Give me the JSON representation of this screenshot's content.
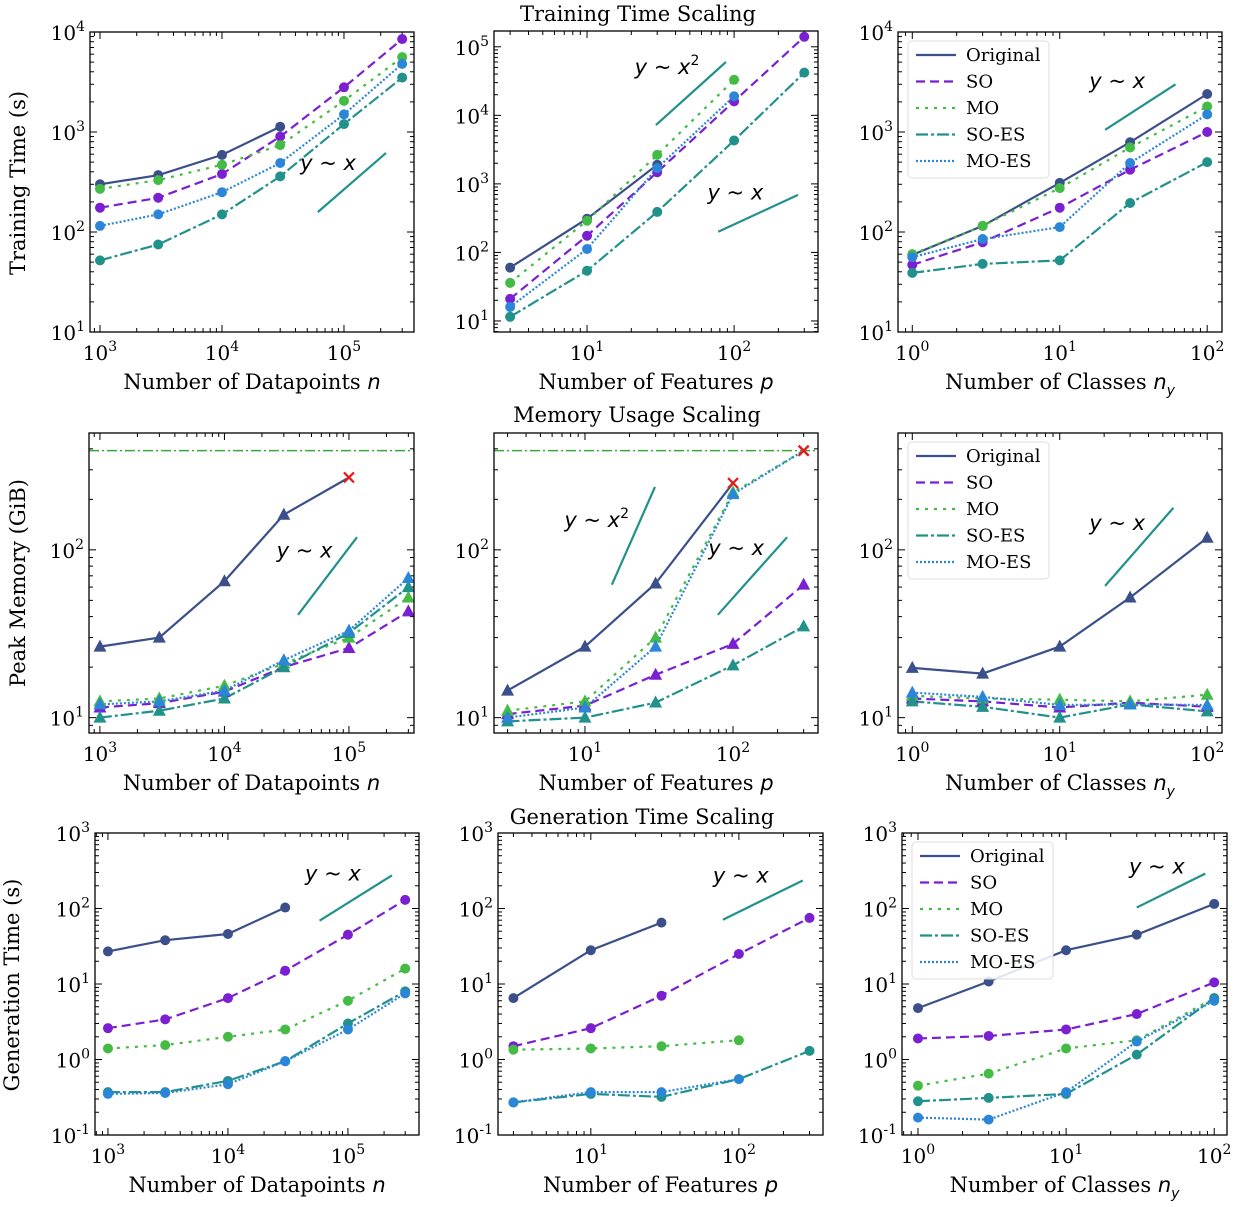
{
  "titles": [
    "Training Time Scaling",
    "Memory Usage Scaling",
    "Generation Time Scaling"
  ],
  "ylabels": [
    "Training Time (s)",
    "Peak Memory (GiB)",
    "Generation Time (s)"
  ],
  "xlabels": [
    {
      "text": "Number of Datapoints",
      "var": "n",
      "sub": ""
    },
    {
      "text": "Number of Features",
      "var": "p",
      "sub": ""
    },
    {
      "text": "Number of Classes",
      "var": "n",
      "sub": "y"
    }
  ],
  "legend": [
    "Original",
    "SO",
    "MO",
    "SO-ES",
    "MO-ES"
  ],
  "colors": {
    "Original": "#3b4f8a",
    "SO": "#7a1fd2",
    "MO": "#44bb44",
    "SO-ES": "#21918c",
    "MO-ES": "#2c86d8",
    "reference": "#21918c",
    "memory_limit": "#3aa83a",
    "oom_marker": "#e41a1c"
  },
  "chart_data": [
    {
      "type": "line",
      "title": "Training Time Scaling",
      "xscale": "log",
      "yscale": "log",
      "xlim": [
        828,
        375000
      ],
      "ylim": [
        10,
        10000
      ],
      "xticks": [
        1000,
        10000,
        100000
      ],
      "yticks": [
        10,
        100,
        1000,
        10000
      ],
      "marker": "circle",
      "legend": false,
      "x": [
        1000,
        3000,
        10000,
        30000,
        100000,
        300000
      ],
      "series": [
        {
          "name": "Original",
          "values": [
            300,
            370,
            590,
            1130,
            null,
            null
          ]
        },
        {
          "name": "SO",
          "values": [
            175,
            220,
            380,
            900,
            2800,
            8500
          ]
        },
        {
          "name": "MO",
          "values": [
            270,
            330,
            470,
            740,
            2050,
            5600
          ]
        },
        {
          "name": "SO-ES",
          "values": [
            52,
            75,
            150,
            360,
            1200,
            3500
          ]
        },
        {
          "name": "MO-ES",
          "values": [
            115,
            150,
            250,
            490,
            1500,
            4800
          ]
        }
      ],
      "annotations": [
        {
          "label": "y ~ x",
          "line": [
            [
              61000,
              158
            ],
            [
              221000,
              617
            ]
          ],
          "at": [
            74000,
            417
          ]
        }
      ]
    },
    {
      "type": "line",
      "xscale": "log",
      "yscale": "log",
      "xlim": [
        2.33,
        372
      ],
      "ylim": [
        6.9,
        170000
      ],
      "xticks": [
        10,
        100
      ],
      "yticks": [
        10,
        100,
        1000,
        10000,
        100000
      ],
      "marker": "circle",
      "legend": false,
      "x": [
        3,
        10,
        30,
        100,
        300
      ],
      "series": [
        {
          "name": "Original",
          "values": [
            60,
            310,
            1900,
            null,
            null
          ]
        },
        {
          "name": "SO",
          "values": [
            21,
            175,
            1480,
            16000,
            140000
          ]
        },
        {
          "name": "MO",
          "values": [
            36,
            290,
            2650,
            33000,
            null
          ]
        },
        {
          "name": "SO-ES",
          "values": [
            11.5,
            54,
            390,
            4300,
            42000
          ]
        },
        {
          "name": "MO-ES",
          "values": [
            16,
            112,
            1700,
            19000,
            null
          ]
        }
      ],
      "annotations": [
        {
          "label": "y ~ x",
          "sup": "2",
          "line": [
            [
              29.4,
              7200
            ],
            [
              88,
              60000
            ]
          ],
          "at": [
            35,
            40000
          ]
        },
        {
          "label": "y ~ x",
          "line": [
            [
              78,
              200
            ],
            [
              272,
              690
            ]
          ],
          "at": [
            102,
            590
          ]
        }
      ]
    },
    {
      "type": "line",
      "xscale": "log",
      "yscale": "log",
      "xlim": [
        0.8,
        126
      ],
      "ylim": [
        10,
        10000
      ],
      "xticks": [
        1,
        10,
        100
      ],
      "yticks": [
        10,
        100,
        1000,
        10000
      ],
      "marker": "circle",
      "legend": true,
      "x": [
        1,
        3,
        10,
        30,
        100
      ],
      "series": [
        {
          "name": "Original",
          "values": [
            59,
            115,
            310,
            790,
            2400
          ]
        },
        {
          "name": "SO",
          "values": [
            47,
            79,
            175,
            420,
            1000
          ]
        },
        {
          "name": "MO",
          "values": [
            60,
            115,
            275,
            700,
            1800
          ]
        },
        {
          "name": "SO-ES",
          "values": [
            39,
            48,
            52,
            195,
            500
          ]
        },
        {
          "name": "MO-ES",
          "values": [
            56,
            85,
            112,
            490,
            1500
          ]
        }
      ],
      "annotations": [
        {
          "label": "y ~ x",
          "line": [
            [
              20.3,
              1050
            ],
            [
              61,
              3000
            ]
          ],
          "at": [
            24.5,
            2750
          ]
        }
      ]
    },
    {
      "type": "line",
      "title": "Memory Usage Scaling",
      "xscale": "log",
      "yscale": "log",
      "xlim": [
        817,
        333000
      ],
      "ylim": [
        8.1,
        497
      ],
      "xticks": [
        1000,
        10000,
        100000
      ],
      "yticks": [
        10,
        100
      ],
      "marker": "triangle",
      "legend": false,
      "hline": 390,
      "x": [
        1000,
        3000,
        10000,
        30000,
        100000,
        300000
      ],
      "series": [
        {
          "name": "Original",
          "values": [
            26.5,
            30,
            65,
            162,
            270,
            null
          ],
          "oom": [
            4
          ]
        },
        {
          "name": "SO",
          "values": [
            11.5,
            12.2,
            14.3,
            20,
            26,
            43
          ]
        },
        {
          "name": "MO",
          "values": [
            12.5,
            13,
            15.5,
            21,
            30,
            52
          ]
        },
        {
          "name": "SO-ES",
          "values": [
            10,
            11,
            13,
            20,
            32,
            60
          ]
        },
        {
          "name": "MO-ES",
          "values": [
            12,
            12.5,
            14.5,
            22,
            33,
            68
          ]
        }
      ],
      "annotations": [
        {
          "label": "y ~ x",
          "line": [
            [
              39000,
              41
            ],
            [
              116000,
              119
            ]
          ],
          "at": [
            44000,
            90
          ]
        }
      ]
    },
    {
      "type": "line",
      "xscale": "log",
      "yscale": "log",
      "xlim": [
        2.43,
        375
      ],
      "ylim": [
        8.1,
        497
      ],
      "xticks": [
        10,
        100
      ],
      "yticks": [
        10,
        100
      ],
      "marker": "triangle",
      "legend": false,
      "hline": 390,
      "x": [
        3,
        10,
        30,
        100,
        300
      ],
      "series": [
        {
          "name": "Original",
          "values": [
            14.5,
            26.5,
            63,
            250,
            null
          ],
          "oom": [
            3
          ]
        },
        {
          "name": "SO",
          "values": [
            10.5,
            11.8,
            18,
            27.5,
            62
          ]
        },
        {
          "name": "MO",
          "values": [
            11,
            12.5,
            30,
            220,
            390
          ],
          "oom": [
            4
          ]
        },
        {
          "name": "SO-ES",
          "values": [
            9.5,
            10,
            12.3,
            20.5,
            35
          ]
        },
        {
          "name": "MO-ES",
          "values": [
            10,
            11.5,
            26.5,
            215,
            390
          ],
          "oom": [
            4
          ]
        }
      ],
      "annotations": [
        {
          "label": "y ~ x",
          "sup": "2",
          "line": [
            [
              15.2,
              62
            ],
            [
              29.7,
              237
            ]
          ],
          "at": [
            12,
            137
          ]
        },
        {
          "label": "y ~ x",
          "line": [
            [
              79,
              41
            ],
            [
              232,
              119
            ]
          ],
          "at": [
            105,
            93
          ]
        }
      ]
    },
    {
      "type": "line",
      "xscale": "log",
      "yscale": "log",
      "xlim": [
        0.8,
        126
      ],
      "ylim": [
        8.1,
        497
      ],
      "xticks": [
        1,
        10,
        100
      ],
      "yticks": [
        10,
        100
      ],
      "marker": "triangle",
      "legend": true,
      "x": [
        1,
        3,
        10,
        30,
        100
      ],
      "series": [
        {
          "name": "Original",
          "values": [
            19.8,
            18.3,
            26.5,
            52,
            118
          ]
        },
        {
          "name": "SO",
          "values": [
            13,
            12.5,
            11.5,
            12.3,
            11.6
          ]
        },
        {
          "name": "MO",
          "values": [
            13.5,
            13,
            12.8,
            12.5,
            13.7
          ]
        },
        {
          "name": "SO-ES",
          "values": [
            12.5,
            11.6,
            10,
            12,
            10.9
          ]
        },
        {
          "name": "MO-ES",
          "values": [
            14.1,
            13.3,
            11.9,
            12,
            11.9
          ]
        }
      ],
      "annotations": [
        {
          "label": "y ~ x",
          "line": [
            [
              20.3,
              61
            ],
            [
              59,
              178
            ]
          ],
          "at": [
            24.5,
            131
          ]
        }
      ]
    },
    {
      "type": "line",
      "title": "Generation Time Scaling",
      "xscale": "log",
      "yscale": "log",
      "xlim": [
        780,
        391000
      ],
      "ylim": [
        0.1,
        1000
      ],
      "xticks": [
        1000,
        10000,
        100000
      ],
      "yticks": [
        0.1,
        1,
        10,
        100,
        1000
      ],
      "marker": "circle",
      "legend": false,
      "x": [
        1000,
        3000,
        10000,
        30000,
        100000,
        300000
      ],
      "series": [
        {
          "name": "Original",
          "values": [
            27,
            38,
            46,
            103,
            null,
            null
          ]
        },
        {
          "name": "SO",
          "values": [
            2.6,
            3.4,
            6.5,
            15,
            45,
            130
          ]
        },
        {
          "name": "MO",
          "values": [
            1.4,
            1.55,
            2.0,
            2.5,
            6,
            16
          ]
        },
        {
          "name": "SO-ES",
          "values": [
            0.37,
            0.37,
            0.52,
            0.95,
            3.0,
            8
          ]
        },
        {
          "name": "MO-ES",
          "values": [
            0.35,
            0.36,
            0.47,
            0.95,
            2.5,
            7.5
          ]
        }
      ],
      "annotations": [
        {
          "label": "y ~ x",
          "line": [
            [
              58000,
              69
            ],
            [
              233000,
              275
            ]
          ],
          "at": [
            75000,
            235
          ]
        }
      ]
    },
    {
      "type": "line",
      "xscale": "log",
      "yscale": "log",
      "xlim": [
        2.36,
        370
      ],
      "ylim": [
        0.1,
        1000
      ],
      "xticks": [
        10,
        100
      ],
      "yticks": [
        0.1,
        1,
        10,
        100,
        1000
      ],
      "marker": "circle",
      "legend": false,
      "x": [
        3,
        10,
        30,
        100,
        300
      ],
      "series": [
        {
          "name": "Original",
          "values": [
            6.5,
            28,
            65,
            null,
            null
          ]
        },
        {
          "name": "SO",
          "values": [
            1.5,
            2.6,
            7,
            25,
            75
          ]
        },
        {
          "name": "MO",
          "values": [
            1.35,
            1.4,
            1.5,
            1.8,
            null
          ]
        },
        {
          "name": "SO-ES",
          "values": [
            0.27,
            0.35,
            0.32,
            0.55,
            1.3
          ]
        },
        {
          "name": "MO-ES",
          "values": [
            0.27,
            0.37,
            0.37,
            0.55,
            null
          ]
        }
      ],
      "annotations": [
        {
          "label": "y ~ x",
          "line": [
            [
              78,
              71
            ],
            [
              270,
              235
            ]
          ],
          "at": [
            103,
            220
          ]
        }
      ]
    },
    {
      "type": "line",
      "xscale": "log",
      "yscale": "log",
      "xlim": [
        0.78,
        122
      ],
      "ylim": [
        0.1,
        1000
      ],
      "xticks": [
        1,
        10,
        100
      ],
      "yticks": [
        0.1,
        1,
        10,
        100,
        1000
      ],
      "marker": "circle",
      "legend": true,
      "x": [
        1,
        3,
        10,
        30,
        100
      ],
      "series": [
        {
          "name": "Original",
          "values": [
            4.8,
            10.8,
            28,
            45,
            115
          ]
        },
        {
          "name": "SO",
          "values": [
            1.9,
            2.05,
            2.5,
            4,
            10.5
          ]
        },
        {
          "name": "MO",
          "values": [
            0.45,
            0.65,
            1.4,
            1.8,
            6.5
          ]
        },
        {
          "name": "SO-ES",
          "values": [
            0.28,
            0.31,
            0.35,
            1.16,
            6.5
          ]
        },
        {
          "name": "MO-ES",
          "values": [
            0.17,
            0.16,
            0.37,
            1.73,
            6
          ]
        }
      ],
      "annotations": [
        {
          "label": "y ~ x",
          "line": [
            [
              30,
              103
            ],
            [
              87,
              290
            ]
          ],
          "at": [
            41,
            290
          ]
        }
      ]
    }
  ]
}
